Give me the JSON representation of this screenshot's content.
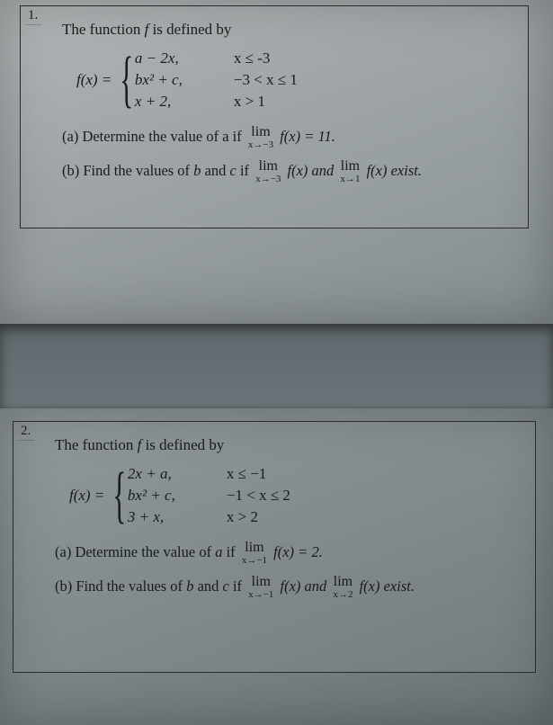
{
  "q1": {
    "number": "1.",
    "intro_pre": "The function ",
    "intro_f": "f",
    "intro_post": " is defined by",
    "fx": "f(x) = ",
    "cases": [
      {
        "expr": "a − 2x,",
        "cond": "x ≤ -3"
      },
      {
        "expr": "bx² + c,",
        "cond": "−3 < x ≤ 1"
      },
      {
        "expr": "x + 2,",
        "cond": "x > 1"
      }
    ],
    "a": {
      "label": "(a) Determine the value of a if ",
      "lim_sub": "x→−3",
      "after": " f(x) = 11."
    },
    "b": {
      "label": "(b) Find the values of ",
      "b_var": "b",
      "and1": " and ",
      "c_var": "c",
      "ifw": " if ",
      "lim1_sub": "x→−3",
      "mid": " f(x) and ",
      "lim2_sub": "x→1",
      "end": " f(x) exist."
    }
  },
  "q2": {
    "number": "2.",
    "intro_pre": "The function ",
    "intro_f": "f",
    "intro_post": " is defined by",
    "fx": "f(x) = ",
    "cases": [
      {
        "expr": "2x + a,",
        "cond": "x ≤ −1"
      },
      {
        "expr": "bx² + c,",
        "cond": "−1 < x ≤ 2"
      },
      {
        "expr": "3 + x,",
        "cond": "x > 2"
      }
    ],
    "a": {
      "label": "(a) Determine the value of ",
      "a_var": "a",
      "ifw": " if ",
      "lim_sub": "x→−1",
      "after": " f(x) = 2."
    },
    "b": {
      "label": "(b) Find the values of ",
      "b_var": "b",
      "and1": " and ",
      "c_var": "c",
      "ifw": " if ",
      "lim1_sub": "x→−1",
      "mid": " f(x) and ",
      "lim2_sub": "x→2",
      "end": " f(x) exist."
    }
  },
  "style": {
    "page_bg": "#5a6266",
    "box_border": "#2b2b2b",
    "text_color": "#1a1a1a",
    "font_family": "Times New Roman",
    "base_fontsize_pt": 13
  }
}
